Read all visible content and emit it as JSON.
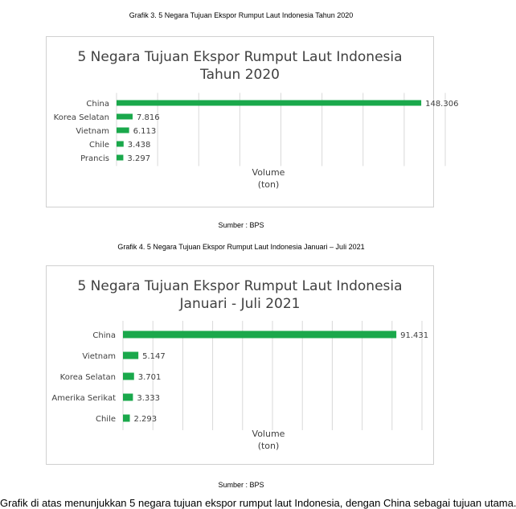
{
  "captions": {
    "chart1": "Grafik 3. 5 Negara Tujuan Ekspor Rumput Laut Indonesia Tahun 2020",
    "chart2": "Grafik 4. 5 Negara Tujuan Ekspor Rumput Laut Indonesia Januari – Juli 2021"
  },
  "sources": {
    "chart1": "Sumber : BPS",
    "chart2": "Sumber : BPS"
  },
  "chart_data": [
    {
      "type": "bar",
      "orientation": "horizontal",
      "title_lines": [
        "5 Negara Tujuan Ekspor Rumput Laut Indonesia",
        "Tahun 2020"
      ],
      "xlabel_lines": [
        "Volume",
        "(ton)"
      ],
      "categories": [
        "China",
        "Korea Selatan",
        "Vietnam",
        "Chile",
        "Prancis"
      ],
      "values": [
        148306,
        7816,
        6113,
        3438,
        3297
      ],
      "value_labels": [
        "148.306",
        "7.816",
        "6.113",
        "3.438",
        "3.297"
      ],
      "xlim": [
        0,
        160000
      ],
      "grid": true,
      "bar_color": "#1aa84b"
    },
    {
      "type": "bar",
      "orientation": "horizontal",
      "title_lines": [
        "5 Negara Tujuan Ekspor Rumput Laut Indonesia",
        "Januari - Juli 2021"
      ],
      "xlabel_lines": [
        "Volume",
        "(ton)"
      ],
      "categories": [
        "China",
        "Vietnam",
        "Korea Selatan",
        "Amerika Serikat",
        "Chile"
      ],
      "values": [
        91431,
        5147,
        3701,
        3333,
        2293
      ],
      "value_labels": [
        "91.431",
        "5.147",
        "3.701",
        "3.333",
        "2.293"
      ],
      "xlim": [
        0,
        100000
      ],
      "grid": true,
      "bar_color": "#1aa84b"
    }
  ],
  "body_text": "Grafik di atas menunjukkan 5 negara tujuan ekspor rumput laut Indonesia, dengan China sebagai tujuan utama."
}
